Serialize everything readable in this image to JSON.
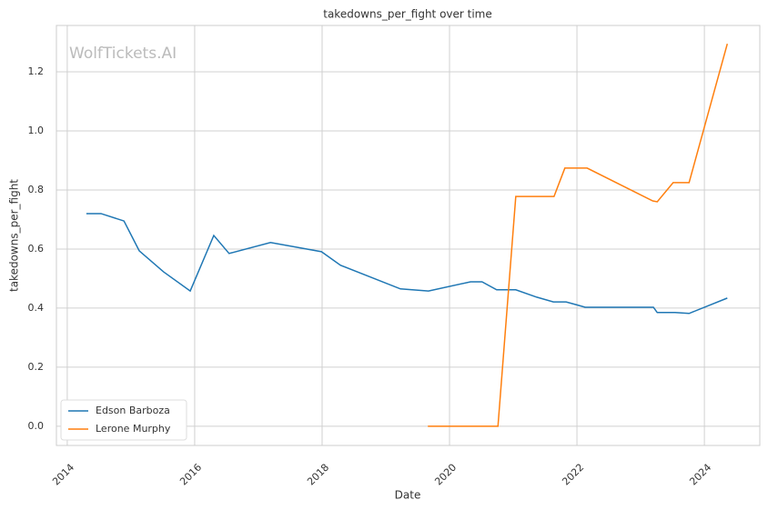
{
  "chart_data": {
    "type": "line",
    "title": "takedowns_per_fight over time",
    "xlabel": "Date",
    "ylabel": "takedowns_per_fight",
    "watermark": "WolfTickets.AI",
    "xlim": [
      2013.83,
      2024.87
    ],
    "xticks": [
      2014,
      2016,
      2018,
      2020,
      2022,
      2024
    ],
    "ylim": [
      -0.065,
      1.357
    ],
    "yticks": [
      {
        "value": 0,
        "label": "0.0"
      },
      {
        "value": 0.2,
        "label": "0.2"
      },
      {
        "value": 0.4,
        "label": "0.4"
      },
      {
        "value": 0.6,
        "label": "0.6"
      },
      {
        "value": 0.8,
        "label": "0.8"
      },
      {
        "value": 1,
        "label": "1.0"
      },
      {
        "value": 1.2,
        "label": "1.2"
      }
    ],
    "grid": true,
    "legend": "lower left",
    "series": [
      {
        "name": "Edson Barboza",
        "color": "#1f77b4",
        "x": [
          2014.3,
          2014.53,
          2014.89,
          2015.13,
          2015.51,
          2015.93,
          2016.3,
          2016.54,
          2017.19,
          2017.99,
          2018.29,
          2019.23,
          2019.67,
          2020.33,
          2020.51,
          2020.74,
          2021.04,
          2021.37,
          2021.63,
          2021.83,
          2022.13,
          2023.2,
          2023.26,
          2023.54,
          2023.76,
          2024.36
        ],
        "values": [
          0.72,
          0.72,
          0.695,
          0.594,
          0.523,
          0.458,
          0.646,
          0.585,
          0.622,
          0.591,
          0.545,
          0.465,
          0.458,
          0.489,
          0.489,
          0.462,
          0.462,
          0.437,
          0.421,
          0.421,
          0.403,
          0.403,
          0.385,
          0.385,
          0.382,
          0.434
        ]
      },
      {
        "name": "Lerone Murphy",
        "color": "#ff7f0e",
        "x": [
          2019.66,
          2020.76,
          2021.04,
          2021.64,
          2021.81,
          2022.16,
          2023.19,
          2023.26,
          2023.51,
          2023.76,
          2024.36
        ],
        "values": [
          0,
          0,
          0.778,
          0.778,
          0.874,
          0.874,
          0.763,
          0.76,
          0.825,
          0.825,
          1.295
        ]
      }
    ]
  }
}
